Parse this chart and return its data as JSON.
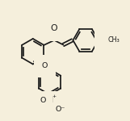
{
  "bg_color": "#f5efdc",
  "bond_color": "#1a1a1a",
  "bond_lw": 1.25,
  "font_size": 6.8,
  "ring_r": 0.105,
  "xlim": [
    0,
    1
  ],
  "ylim": [
    0,
    1
  ]
}
